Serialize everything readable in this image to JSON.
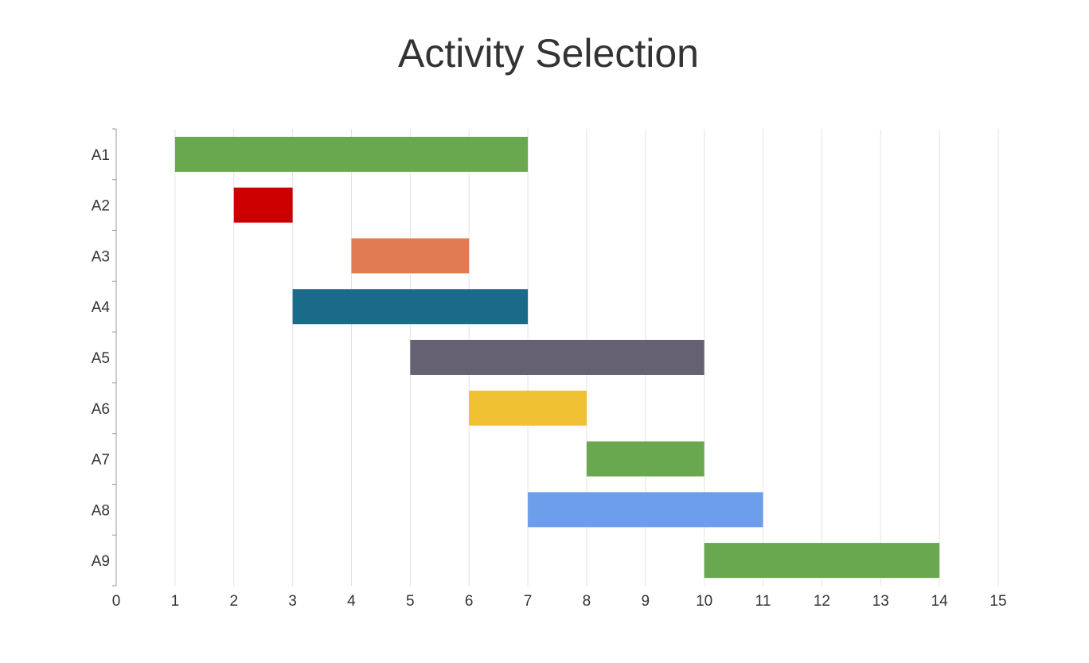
{
  "chart_data": {
    "type": "bar",
    "orientation": "horizontal-range",
    "title": "Activity Selection",
    "xlabel": "",
    "ylabel": "",
    "xlim": [
      0,
      15
    ],
    "x_ticks": [
      "0",
      "1",
      "2",
      "3",
      "4",
      "5",
      "6",
      "7",
      "8",
      "9",
      "10",
      "11",
      "12",
      "13",
      "14",
      "15"
    ],
    "grid": "vertical",
    "categories": [
      "A1",
      "A2",
      "A3",
      "A4",
      "A5",
      "A6",
      "A7",
      "A8",
      "A9"
    ],
    "series": [
      {
        "values": [
          {
            "start": 1,
            "end": 7,
            "color": "#6aa84f"
          },
          {
            "start": 2,
            "end": 3,
            "color": "#cc0000"
          },
          {
            "start": 4,
            "end": 6,
            "color": "#e07b53"
          },
          {
            "start": 3,
            "end": 7,
            "color": "#1a6b8a"
          },
          {
            "start": 5,
            "end": 10,
            "color": "#666073"
          },
          {
            "start": 6,
            "end": 8,
            "color": "#f0c233"
          },
          {
            "start": 8,
            "end": 10,
            "color": "#6aa84f"
          },
          {
            "start": 7,
            "end": 11,
            "color": "#6d9eeb"
          },
          {
            "start": 10,
            "end": 14,
            "color": "#6aa84f"
          }
        ]
      }
    ]
  }
}
